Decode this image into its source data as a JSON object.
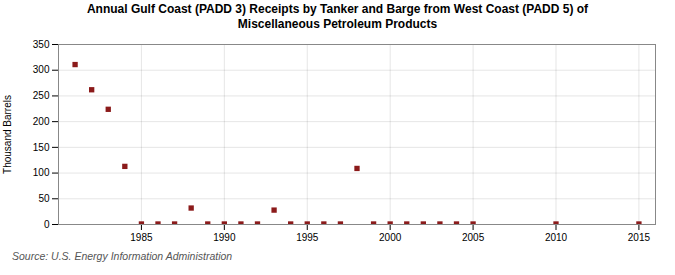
{
  "chart_data": {
    "type": "scatter",
    "title": "Annual Gulf Coast (PADD 3) Receipts by Tanker and Barge from West Coast (PADD 5) of\nMiscellaneous Petroleum Products",
    "ylabel": "Thousand Barrels",
    "annotations": [
      "Source: U.S. Energy Information Administration"
    ],
    "x": [
      1981,
      1982,
      1983,
      1984,
      1985,
      1986,
      1987,
      1988,
      1989,
      1990,
      1991,
      1992,
      1993,
      1994,
      1995,
      1996,
      1997,
      1998,
      1999,
      2000,
      2001,
      2002,
      2003,
      2004,
      2005,
      2010,
      2015
    ],
    "values": [
      311,
      262,
      224,
      113,
      1,
      1,
      1,
      32,
      1,
      1,
      1,
      1,
      28,
      1,
      1,
      1,
      1,
      109,
      1,
      1,
      1,
      1,
      1,
      1,
      1,
      1,
      1
    ],
    "color": "#8b1a1a",
    "marker": "square",
    "xlim": [
      1980,
      2016
    ],
    "ylim": [
      0,
      350
    ],
    "xticks": [
      1985,
      1990,
      1995,
      2000,
      2005,
      2010,
      2015
    ],
    "yticks": [
      0,
      50,
      100,
      150,
      200,
      250,
      300,
      350
    ],
    "grid": true
  }
}
